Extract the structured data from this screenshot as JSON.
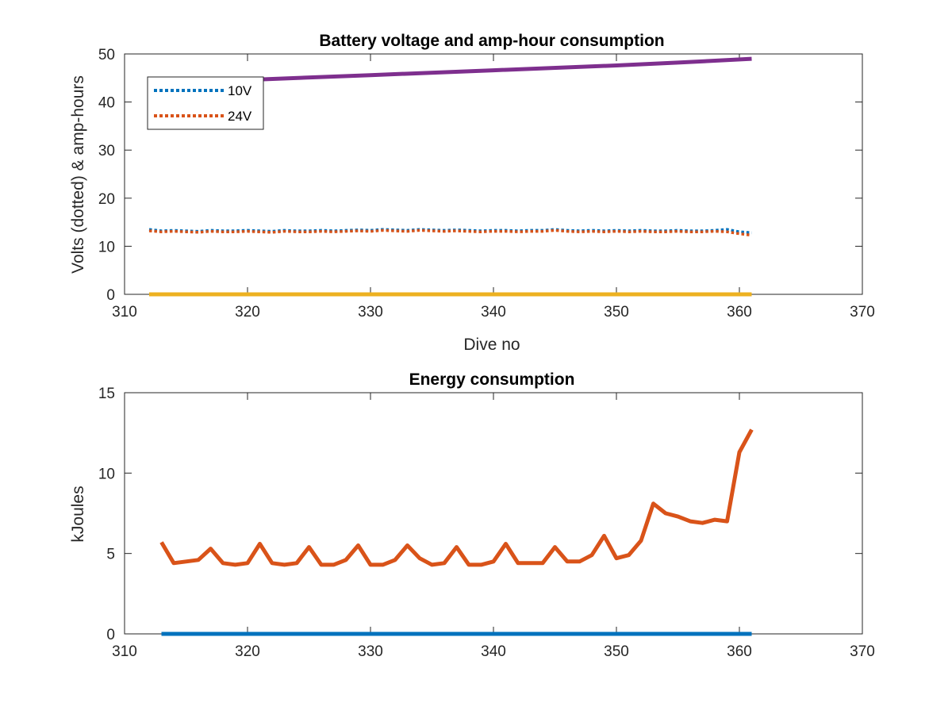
{
  "chart_data": [
    {
      "type": "line",
      "title": "Battery voltage and amp-hour consumption",
      "xlabel": "Dive no",
      "ylabel": "Volts (dotted) & amp-hours",
      "xlim": [
        310,
        370
      ],
      "ylim": [
        0,
        50
      ],
      "xticks": [
        "310",
        "320",
        "330",
        "340",
        "350",
        "360",
        "370"
      ],
      "yticks": [
        "0",
        "10",
        "20",
        "30",
        "40",
        "50"
      ],
      "grid": false,
      "legend": {
        "placement": "top-left",
        "entries": [
          "10V",
          "24V"
        ]
      },
      "series": [
        {
          "name": "10V",
          "style": "dotted",
          "color": "#0072BD",
          "x": [
            312,
            313,
            314,
            315,
            316,
            317,
            318,
            319,
            320,
            321,
            322,
            323,
            324,
            325,
            326,
            327,
            328,
            329,
            330,
            331,
            332,
            333,
            334,
            335,
            336,
            337,
            338,
            339,
            340,
            341,
            342,
            343,
            344,
            345,
            346,
            347,
            348,
            349,
            350,
            351,
            352,
            353,
            354,
            355,
            356,
            357,
            358,
            359,
            360,
            361
          ],
          "values": [
            13.5,
            13.2,
            13.3,
            13.2,
            13.1,
            13.3,
            13.2,
            13.2,
            13.3,
            13.2,
            13.1,
            13.3,
            13.2,
            13.2,
            13.3,
            13.2,
            13.3,
            13.4,
            13.3,
            13.5,
            13.4,
            13.3,
            13.5,
            13.4,
            13.3,
            13.4,
            13.3,
            13.2,
            13.3,
            13.3,
            13.2,
            13.3,
            13.3,
            13.5,
            13.3,
            13.2,
            13.3,
            13.2,
            13.3,
            13.2,
            13.3,
            13.2,
            13.2,
            13.3,
            13.2,
            13.2,
            13.3,
            13.5,
            13.0,
            12.8
          ]
        },
        {
          "name": "24V",
          "style": "dotted",
          "color": "#D95319",
          "x": [
            312,
            313,
            314,
            315,
            316,
            317,
            318,
            319,
            320,
            321,
            322,
            323,
            324,
            325,
            326,
            327,
            328,
            329,
            330,
            331,
            332,
            333,
            334,
            335,
            336,
            337,
            338,
            339,
            340,
            341,
            342,
            343,
            344,
            345,
            346,
            347,
            348,
            349,
            350,
            351,
            352,
            353,
            354,
            355,
            356,
            357,
            358,
            359,
            360,
            361
          ],
          "values": [
            13.2,
            13.0,
            13.1,
            13.0,
            12.9,
            13.1,
            13.0,
            13.0,
            13.1,
            13.0,
            12.9,
            13.1,
            13.0,
            13.0,
            13.1,
            13.0,
            13.1,
            13.2,
            13.1,
            13.3,
            13.2,
            13.1,
            13.3,
            13.2,
            13.1,
            13.2,
            13.1,
            13.0,
            13.1,
            13.1,
            13.0,
            13.1,
            13.1,
            13.3,
            13.1,
            13.0,
            13.1,
            13.0,
            13.1,
            13.0,
            13.1,
            13.0,
            13.0,
            13.1,
            13.0,
            13.0,
            13.1,
            13.0,
            12.6,
            12.3
          ]
        },
        {
          "style": "solid",
          "color": "#EDB120",
          "x": [
            312,
            361
          ],
          "values": [
            0,
            0
          ]
        },
        {
          "style": "solid",
          "color": "#7E2F8E",
          "x": [
            312,
            320,
            330,
            340,
            350,
            355,
            361
          ],
          "values": [
            43.5,
            44.6,
            45.6,
            46.6,
            47.6,
            48.2,
            49.0
          ]
        }
      ]
    },
    {
      "type": "line",
      "title": "Energy consumption",
      "xlabel": "",
      "ylabel": "kJoules",
      "xlim": [
        310,
        370
      ],
      "ylim": [
        0,
        15
      ],
      "xticks": [
        "310",
        "320",
        "330",
        "340",
        "350",
        "360",
        "370"
      ],
      "yticks": [
        "0",
        "5",
        "10",
        "15"
      ],
      "grid": false,
      "series": [
        {
          "style": "solid",
          "color": "#0072BD",
          "x": [
            313,
            361
          ],
          "values": [
            0,
            0
          ]
        },
        {
          "style": "solid",
          "color": "#D95319",
          "x": [
            313,
            314,
            315,
            316,
            317,
            318,
            319,
            320,
            321,
            322,
            323,
            324,
            325,
            326,
            327,
            328,
            329,
            330,
            331,
            332,
            333,
            334,
            335,
            336,
            337,
            338,
            339,
            340,
            341,
            342,
            343,
            344,
            345,
            346,
            347,
            348,
            349,
            350,
            351,
            352,
            353,
            354,
            355,
            356,
            357,
            358,
            359,
            360,
            361
          ],
          "values": [
            5.7,
            4.4,
            4.5,
            4.6,
            5.3,
            4.4,
            4.3,
            4.4,
            5.6,
            4.4,
            4.3,
            4.4,
            5.4,
            4.3,
            4.3,
            4.6,
            5.5,
            4.3,
            4.3,
            4.6,
            5.5,
            4.7,
            4.3,
            4.4,
            5.4,
            4.3,
            4.3,
            4.5,
            5.6,
            4.4,
            4.4,
            4.4,
            5.4,
            4.5,
            4.5,
            4.9,
            6.1,
            4.7,
            4.9,
            5.8,
            8.1,
            7.5,
            7.3,
            7.0,
            6.9,
            7.1,
            7.0,
            11.3,
            12.7
          ]
        }
      ]
    }
  ]
}
